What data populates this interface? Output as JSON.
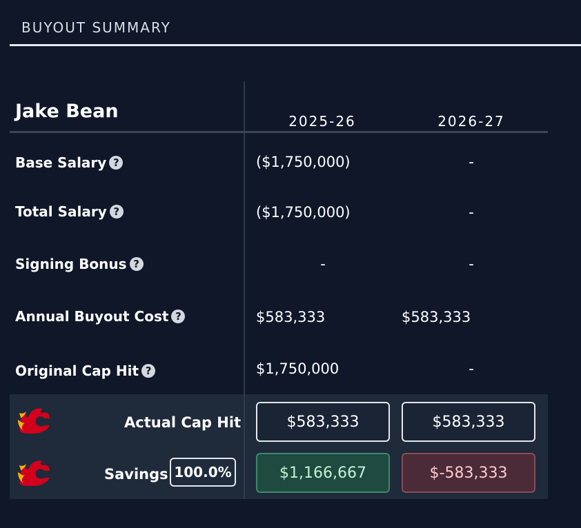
{
  "header": {
    "title": "BUYOUT SUMMARY"
  },
  "player": {
    "name": "Jake Bean"
  },
  "seasons": [
    "2025-26",
    "2026-27"
  ],
  "rows": [
    {
      "label": "Base Salary",
      "values": [
        "($1,750,000)",
        "-"
      ]
    },
    {
      "label": "Total Salary",
      "values": [
        "($1,750,000)",
        "-"
      ]
    },
    {
      "label": "Signing Bonus",
      "values": [
        "-",
        "-"
      ]
    },
    {
      "label": "Annual Buyout Cost",
      "values": [
        "$583,333",
        "$583,333"
      ]
    },
    {
      "label": "Original Cap Hit",
      "values": [
        "$1,750,000",
        "-"
      ]
    }
  ],
  "help_icon": "question-circle-icon",
  "summary": {
    "team_logo_icon": "calgary-flames-logo-icon",
    "actual_cap_hit": {
      "label": "Actual Cap Hit",
      "values": [
        "$583,333",
        "$583,333"
      ]
    },
    "savings": {
      "label": "Savings",
      "percent": "100.0%",
      "values": [
        "$1,166,667",
        "$-583,333"
      ]
    }
  },
  "colors": {
    "background": "#0f1729",
    "panel": "#1f2a3b",
    "positive": "#1f4a3f",
    "negative": "#4a2b37",
    "logo_red": "#d2001c",
    "logo_yellow": "#f2b20a"
  }
}
